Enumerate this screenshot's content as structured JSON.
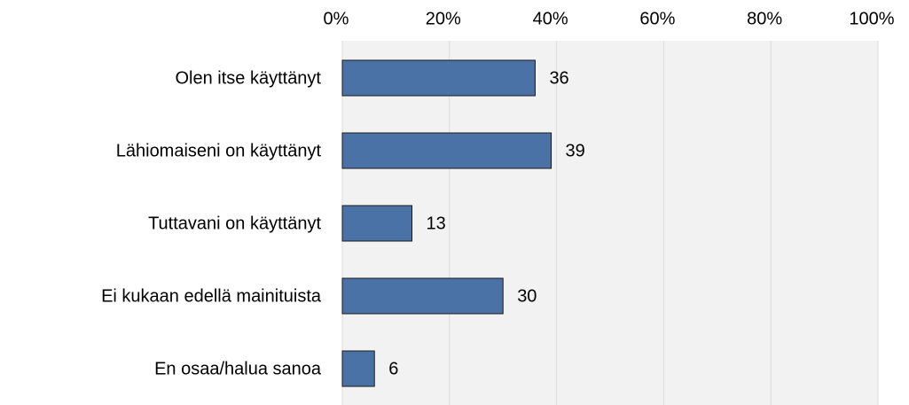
{
  "chart_data": {
    "type": "bar",
    "orientation": "horizontal",
    "categories": [
      "Olen itse käyttänyt",
      "Lähiomaiseni on käyttänyt",
      "Tuttavani on käyttänyt",
      "Ei kukaan edellä mainituista",
      "En osaa/halua sanoa"
    ],
    "values": [
      36,
      39,
      13,
      30,
      6
    ],
    "color": "#4a72a6",
    "xlim": [
      0,
      100
    ],
    "xticks": [
      {
        "value": 0,
        "label": "0%"
      },
      {
        "value": 20,
        "label": "20%"
      },
      {
        "value": 40,
        "label": "40%"
      },
      {
        "value": 60,
        "label": "60%"
      },
      {
        "value": 80,
        "label": "80%"
      },
      {
        "value": 100,
        "label": "100%"
      }
    ],
    "grid": true
  }
}
